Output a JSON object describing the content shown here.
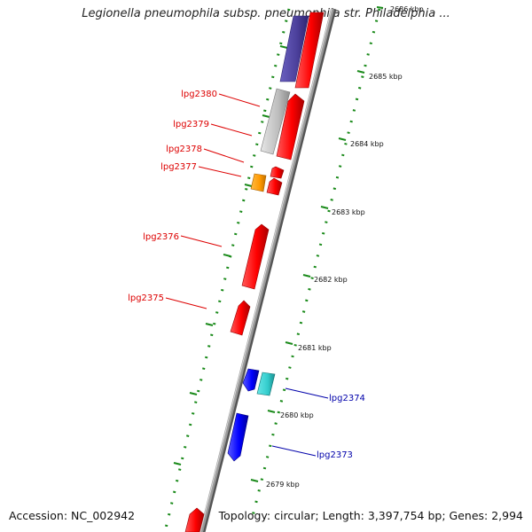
{
  "title": "Legionella pneumophila subsp. pneumophila str. Philadelphia ...",
  "footer": {
    "accession": "Accession: NC_002942",
    "summary": "Topology: circular; Length: 3,397,754 bp; Genes: 2,994"
  },
  "ticks": [
    "2679 kbp",
    "2680 kbp",
    "2681 kbp",
    "2682 kbp",
    "2683 kbp",
    "2684 kbp",
    "2685 kbp",
    "2686 kbp"
  ],
  "genes": [
    {
      "name": "lpg2380",
      "strand": "forward",
      "color": "#dd0000"
    },
    {
      "name": "lpg2379",
      "strand": "forward",
      "color": "#dd0000"
    },
    {
      "name": "lpg2378",
      "strand": "forward",
      "color": "#dd0000"
    },
    {
      "name": "lpg2377",
      "strand": "forward",
      "color": "#dd0000"
    },
    {
      "name": "lpg2376",
      "strand": "forward",
      "color": "#dd0000"
    },
    {
      "name": "lpg2375",
      "strand": "forward",
      "color": "#dd0000"
    },
    {
      "name": "lpg2374",
      "strand": "reverse",
      "color": "#0000aa"
    },
    {
      "name": "lpg2373",
      "strand": "reverse",
      "color": "#0000aa"
    }
  ],
  "colors": {
    "backbone": "#888888",
    "tick_marks": "#1a8a1a",
    "forward_gene": "#ff0000",
    "reverse_gene": "#0000ff",
    "rna_gene": "#c0c0c0",
    "orange_feature": "#ff9900",
    "cyan_feature": "#33cccc",
    "purple_feature": "#4b3f9a"
  }
}
